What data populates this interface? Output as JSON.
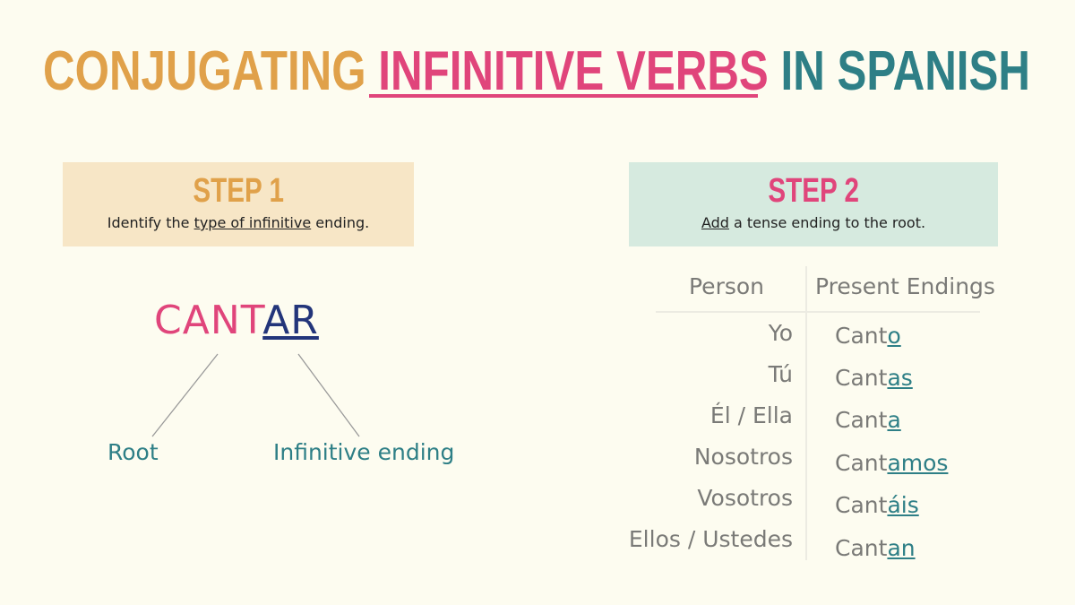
{
  "title": {
    "part1": "CONJUGATING ",
    "part2": "INFINITIVE VERBS",
    "part3": " IN SPANISH"
  },
  "colors": {
    "orange": "#e0a14a",
    "pink": "#e0457b",
    "teal": "#2e7f86",
    "navy": "#23357a",
    "step1_bg": "#f7e6c6",
    "step2_bg": "#d6eadf",
    "background": "#fdfcf0"
  },
  "step1": {
    "heading": "STEP 1",
    "sub_pre": "Identify the ",
    "sub_link": "type of infinitive",
    "sub_post": " ending."
  },
  "step2": {
    "heading": "STEP 2",
    "sub_link": "Add",
    "sub_post": " a tense ending to the root."
  },
  "diagram": {
    "root_part": "CANT",
    "ending_part": "AR",
    "root_label": "Root",
    "ending_label": "Infinitive ending"
  },
  "table": {
    "headers": [
      "Person",
      "Present Endings"
    ],
    "rows": [
      {
        "person": "Yo",
        "stem": "Cant",
        "suffix": "o"
      },
      {
        "person": "Tú",
        "stem": "Cant",
        "suffix": "as"
      },
      {
        "person": "Él / Ella",
        "stem": "Cant",
        "suffix": "a"
      },
      {
        "person": "Nosotros",
        "stem": "Cant",
        "suffix": "amos"
      },
      {
        "person": "Vosotros",
        "stem": "Cant",
        "suffix": "áis"
      },
      {
        "person": "Ellos / Ustedes",
        "stem": "Cant",
        "suffix": "an"
      }
    ]
  }
}
